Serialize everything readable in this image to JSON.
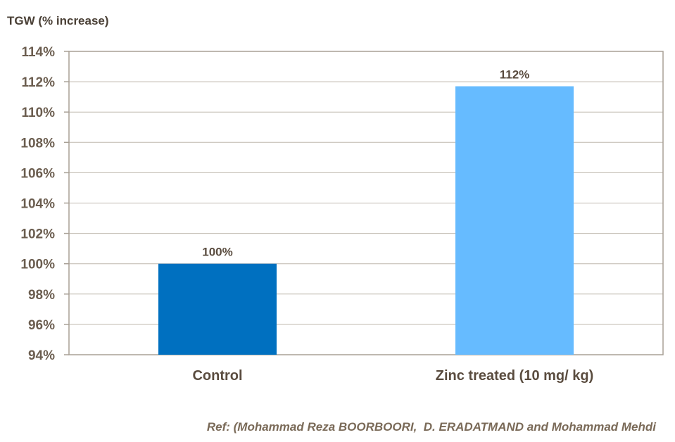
{
  "chart_data": {
    "type": "bar",
    "ylabel": "TGW (% increase)",
    "xlabel": "",
    "categories": [
      "Control",
      "Zinc treated (10 mg/ kg)"
    ],
    "values": [
      100,
      111.7
    ],
    "data_labels": [
      "100%",
      "112%"
    ],
    "ylim": [
      94,
      114
    ],
    "yticks": [
      94,
      96,
      98,
      100,
      102,
      104,
      106,
      108,
      110,
      112,
      114
    ],
    "ytick_labels": [
      "94%",
      "96%",
      "98%",
      "100%",
      "102%",
      "104%",
      "106%",
      "108%",
      "110%",
      "112%",
      "114%"
    ],
    "grid": true,
    "legend": "none"
  },
  "colors": {
    "bars": [
      "#0070c0",
      "#66bbff"
    ],
    "grid": "#bfb8ae",
    "frame": "#a8a096"
  },
  "reference": "Ref: (Mohammad Reza BOORBOORI,  D. ERADATMAND and Mohammad Mehdi"
}
